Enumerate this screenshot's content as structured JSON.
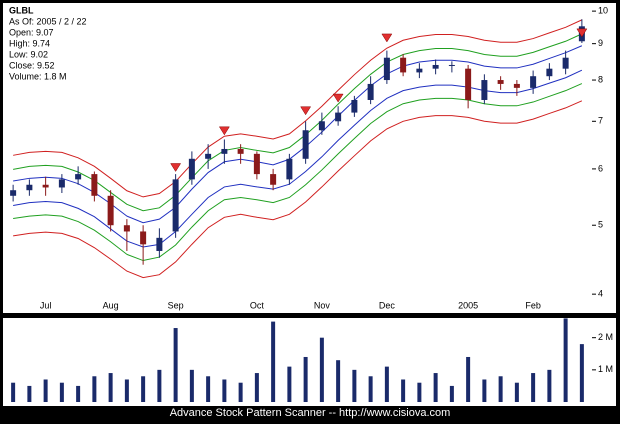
{
  "chart_data": {
    "type": "candlestick",
    "symbol": "GLBL",
    "info": [
      "As Of: 2005 / 2 / 22",
      "Open: 9.07",
      "High: 9.74",
      "Low: 9.02",
      "Close: 9.52",
      "Volume: 1.8 M"
    ],
    "footer": "Advance Stock Pattern Scanner -- http://www.cisiova.com",
    "categories": [
      null,
      null,
      "Jul",
      null,
      null,
      null,
      "Aug",
      null,
      null,
      null,
      "Sep",
      null,
      null,
      null,
      null,
      "Oct",
      null,
      null,
      null,
      "Nov",
      null,
      null,
      null,
      "Dec",
      null,
      null,
      null,
      null,
      "2005",
      null,
      null,
      null,
      "Feb",
      null,
      null,
      null
    ],
    "open": [
      5.5,
      5.6,
      5.7,
      5.65,
      5.8,
      5.9,
      5.5,
      5.0,
      4.9,
      4.6,
      4.9,
      5.8,
      6.2,
      6.3,
      6.4,
      6.3,
      5.9,
      5.8,
      6.2,
      6.8,
      7.0,
      7.2,
      7.5,
      8.0,
      8.6,
      8.2,
      8.3,
      8.4,
      8.3,
      7.5,
      8.0,
      7.9,
      7.8,
      8.1,
      8.3,
      9.07
    ],
    "high": [
      5.7,
      5.8,
      5.85,
      5.9,
      6.05,
      5.95,
      5.6,
      5.1,
      5.0,
      4.95,
      5.9,
      6.35,
      6.5,
      6.6,
      6.5,
      6.35,
      6.0,
      6.3,
      7.0,
      7.2,
      7.35,
      7.6,
      8.1,
      8.8,
      8.7,
      8.45,
      8.55,
      8.5,
      8.4,
      8.15,
      8.1,
      8.0,
      8.25,
      8.45,
      8.8,
      9.74
    ],
    "low": [
      5.4,
      5.5,
      5.5,
      5.55,
      5.7,
      5.4,
      4.9,
      4.6,
      4.4,
      4.5,
      4.8,
      5.7,
      6.0,
      6.1,
      6.1,
      5.8,
      5.6,
      5.7,
      6.1,
      6.7,
      6.9,
      7.1,
      7.4,
      7.9,
      8.1,
      8.05,
      8.15,
      8.2,
      7.3,
      7.4,
      7.75,
      7.6,
      7.65,
      8.0,
      8.15,
      9.02
    ],
    "close": [
      5.6,
      5.7,
      5.65,
      5.8,
      5.9,
      5.5,
      5.0,
      4.9,
      4.7,
      4.8,
      5.8,
      6.2,
      6.3,
      6.4,
      6.3,
      5.9,
      5.7,
      6.2,
      6.8,
      7.0,
      7.2,
      7.5,
      7.9,
      8.6,
      8.2,
      8.3,
      8.4,
      8.4,
      7.5,
      8.0,
      7.9,
      7.8,
      8.1,
      8.3,
      8.6,
      9.52
    ],
    "up_color": "#1a2a6a",
    "down_color": "#8b1a1a",
    "bands": [
      {
        "color": "#d02020",
        "values": [
          6.27,
          6.33,
          6.35,
          6.33,
          6.22,
          6.05,
          5.82,
          5.59,
          5.48,
          5.54,
          5.76,
          6.1,
          6.44,
          6.67,
          6.72,
          6.67,
          6.61,
          6.72,
          7.01,
          7.35,
          7.74,
          8.14,
          8.53,
          8.87,
          9.1,
          9.21,
          9.27,
          9.27,
          9.21,
          9.1,
          9.04,
          9.04,
          9.15,
          9.32,
          9.49,
          9.72
        ]
      },
      {
        "color": "#20a020",
        "values": [
          5.99,
          6.05,
          6.07,
          6.05,
          5.94,
          5.78,
          5.56,
          5.35,
          5.24,
          5.29,
          5.51,
          5.83,
          6.16,
          6.37,
          6.43,
          6.37,
          6.32,
          6.43,
          6.7,
          7.02,
          7.4,
          7.78,
          8.15,
          8.48,
          8.69,
          8.8,
          8.86,
          8.86,
          8.8,
          8.69,
          8.64,
          8.64,
          8.75,
          8.91,
          9.07,
          9.29
        ]
      },
      {
        "color": "#2030c0",
        "values": [
          5.77,
          5.82,
          5.84,
          5.82,
          5.72,
          5.56,
          5.36,
          5.15,
          5.04,
          5.1,
          5.3,
          5.62,
          5.93,
          6.14,
          6.19,
          6.14,
          6.08,
          6.19,
          6.45,
          6.76,
          7.12,
          7.49,
          7.85,
          8.16,
          8.37,
          8.48,
          8.53,
          8.53,
          8.48,
          8.37,
          8.32,
          8.32,
          8.42,
          8.58,
          8.74,
          8.94
        ]
      },
      {
        "color": "#2030c0",
        "values": [
          5.33,
          5.38,
          5.4,
          5.38,
          5.28,
          5.14,
          4.94,
          4.75,
          4.66,
          4.7,
          4.9,
          5.18,
          5.47,
          5.66,
          5.71,
          5.66,
          5.62,
          5.71,
          5.95,
          6.24,
          6.58,
          6.91,
          7.25,
          7.54,
          7.73,
          7.82,
          7.87,
          7.87,
          7.82,
          7.73,
          7.68,
          7.68,
          7.78,
          7.92,
          8.06,
          8.26
        ]
      },
      {
        "color": "#20a020",
        "values": [
          5.11,
          5.15,
          5.17,
          5.15,
          5.06,
          4.92,
          4.74,
          4.55,
          4.46,
          4.51,
          4.69,
          4.97,
          5.24,
          5.43,
          5.47,
          5.43,
          5.38,
          5.47,
          5.7,
          5.98,
          6.3,
          6.62,
          6.95,
          7.22,
          7.41,
          7.5,
          7.54,
          7.54,
          7.5,
          7.41,
          7.36,
          7.36,
          7.45,
          7.59,
          7.73,
          7.91
        ]
      },
      {
        "color": "#d02020",
        "values": [
          4.83,
          4.87,
          4.89,
          4.87,
          4.79,
          4.65,
          4.48,
          4.31,
          4.22,
          4.26,
          4.44,
          4.7,
          4.96,
          5.13,
          5.18,
          5.13,
          5.09,
          5.18,
          5.39,
          5.66,
          5.96,
          6.26,
          6.57,
          6.83,
          7.0,
          7.09,
          7.13,
          7.13,
          7.09,
          7.0,
          6.96,
          6.96,
          7.05,
          7.18,
          7.31,
          7.48
        ]
      }
    ],
    "signals": {
      "color": "#e03030",
      "values": [
        null,
        null,
        null,
        null,
        null,
        null,
        null,
        null,
        null,
        null,
        5.95,
        null,
        null,
        6.7,
        null,
        null,
        null,
        null,
        7.15,
        null,
        7.45,
        null,
        null,
        9.05,
        null,
        null,
        null,
        null,
        null,
        null,
        null,
        null,
        null,
        null,
        null,
        9.2
      ]
    },
    "ylim": [
      3.8,
      10.2
    ],
    "log": true,
    "yticks": [
      4,
      5,
      6,
      7,
      8,
      9,
      10
    ],
    "volume": {
      "color": "#1a2a6a",
      "values": [
        0.6,
        0.5,
        0.7,
        0.6,
        0.5,
        0.8,
        0.9,
        0.7,
        0.8,
        1.0,
        2.3,
        1.0,
        0.8,
        0.7,
        0.6,
        0.9,
        2.5,
        1.1,
        1.4,
        2.0,
        1.3,
        1.0,
        0.8,
        1.1,
        0.7,
        0.6,
        0.9,
        0.5,
        1.4,
        0.7,
        0.8,
        0.6,
        0.9,
        1.0,
        2.6,
        1.8
      ],
      "ylim": [
        0,
        2.55
      ],
      "yticks": [
        {
          "value": 1,
          "label": "1 M"
        },
        {
          "value": 2,
          "label": "2 M"
        }
      ]
    }
  }
}
